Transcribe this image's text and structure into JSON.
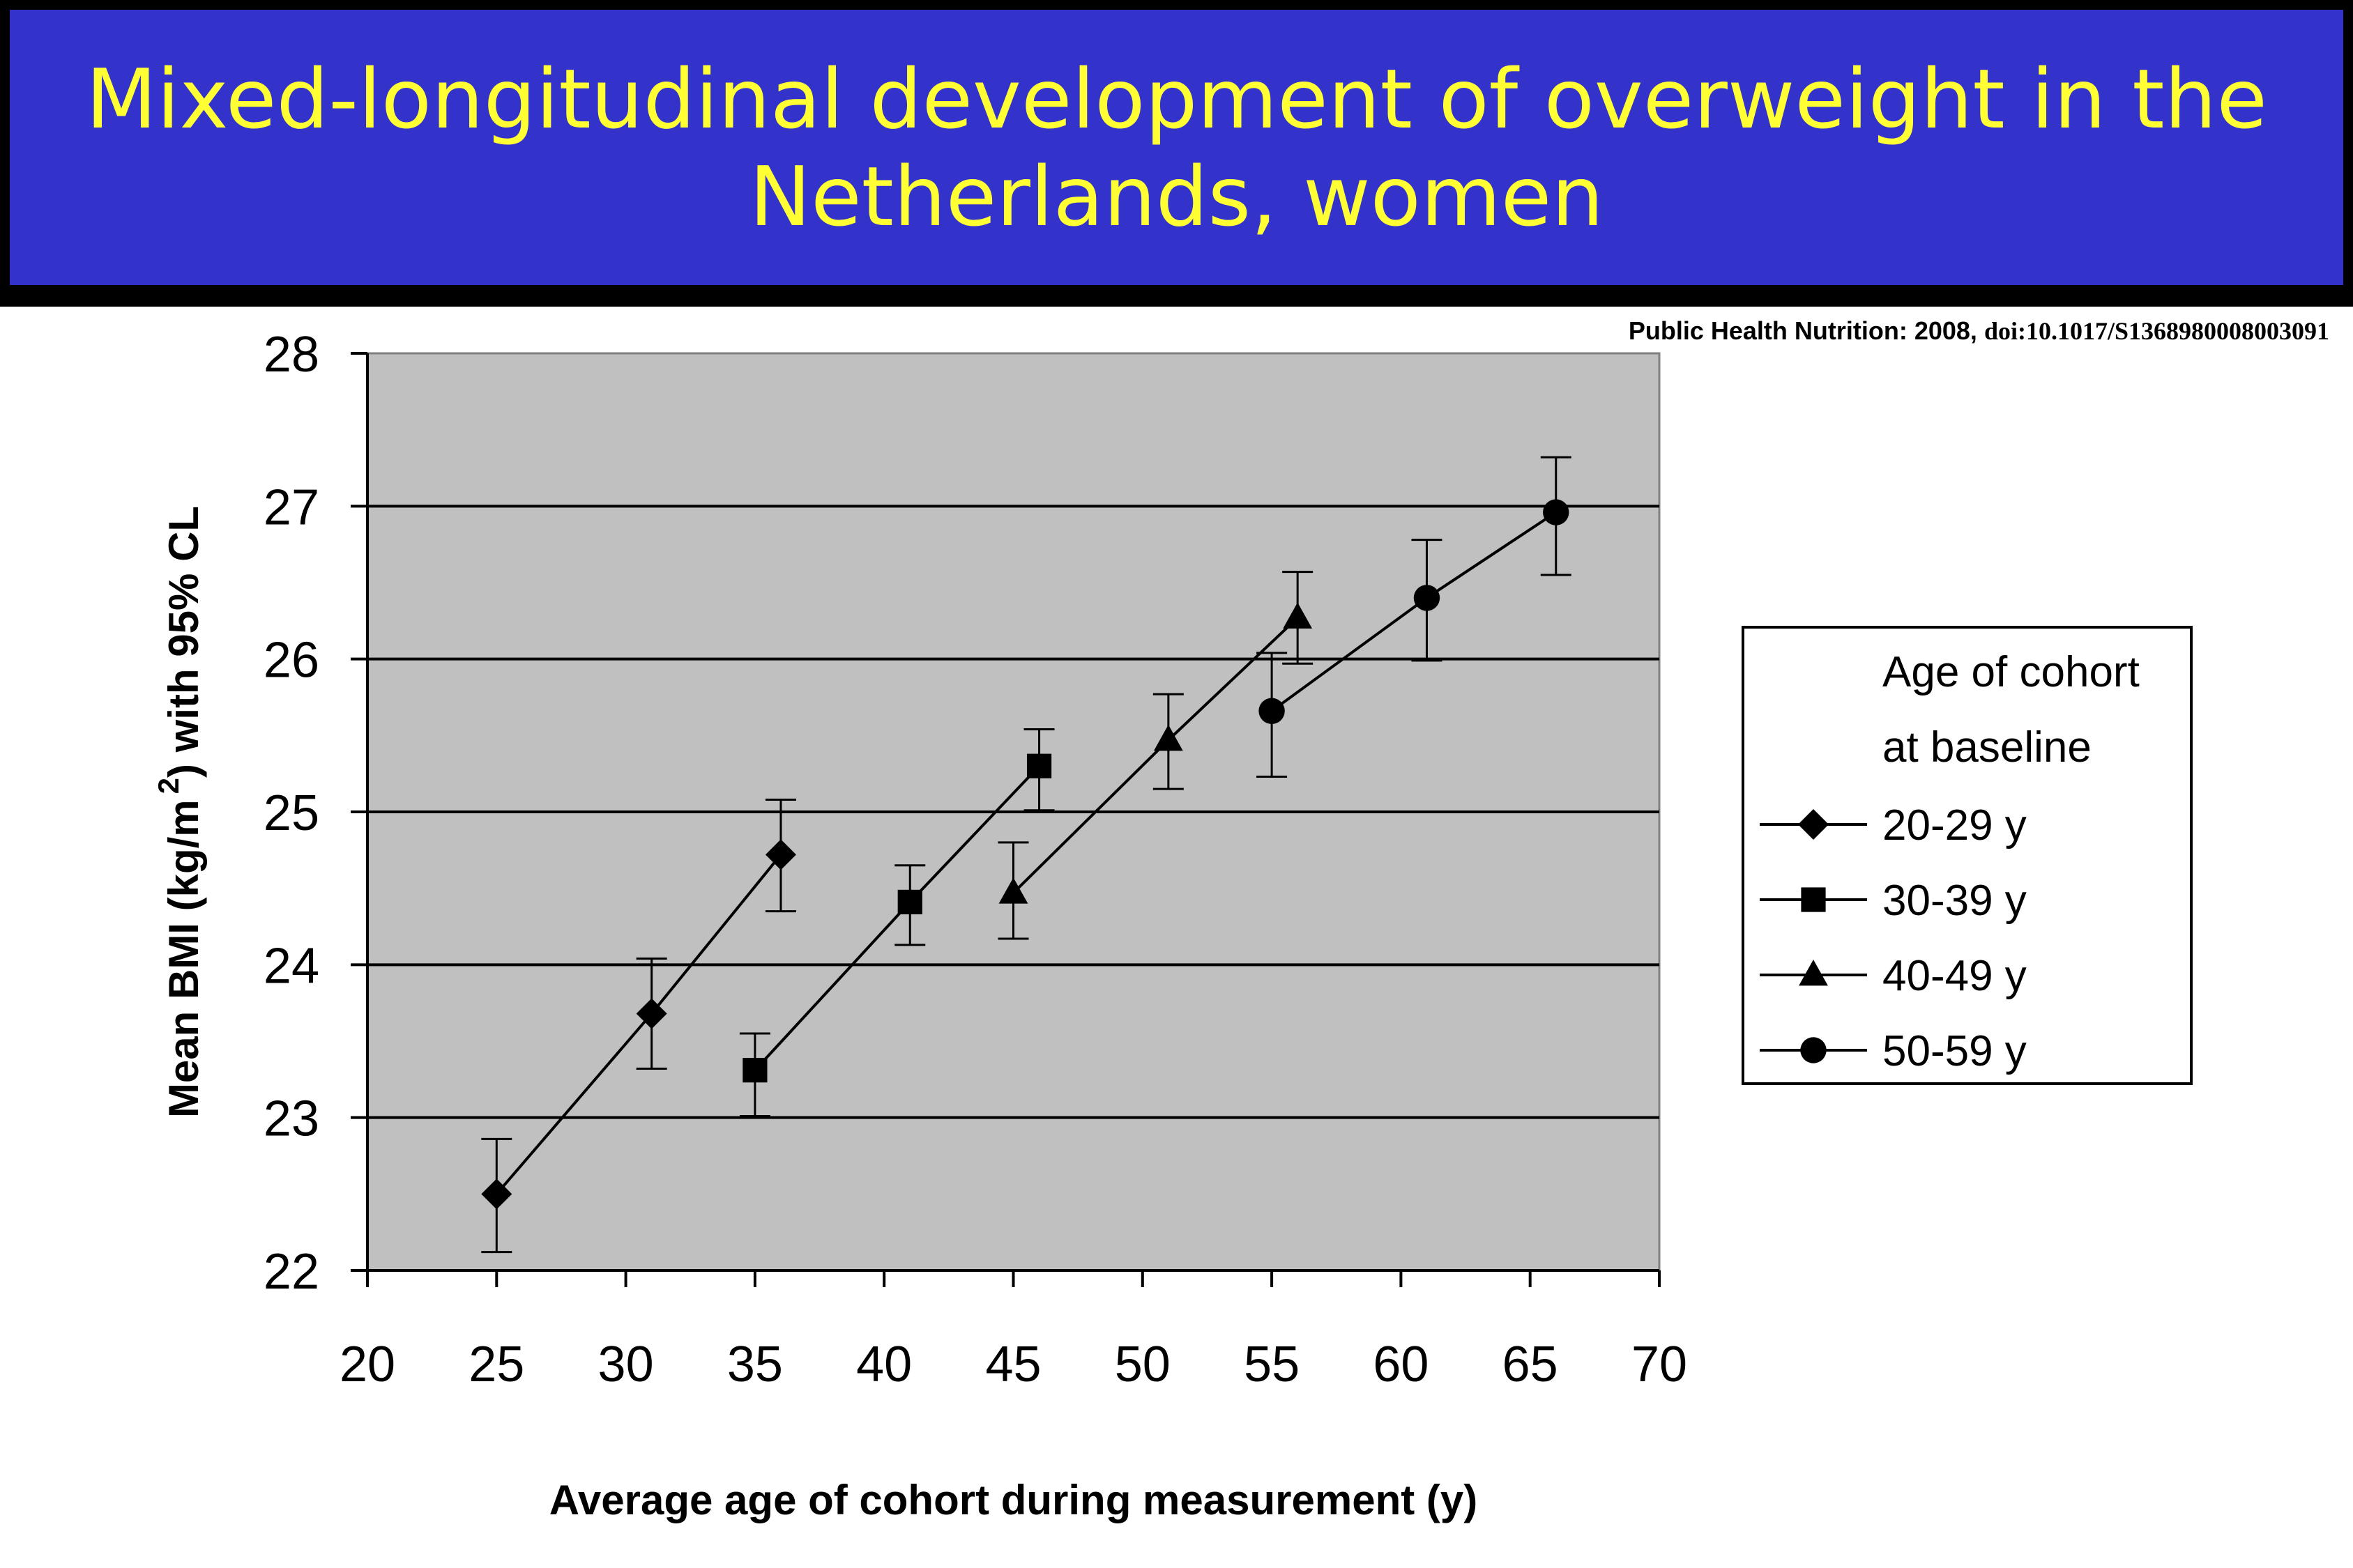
{
  "title_line1": "Mixed-longitudinal development of overweight in the",
  "title_line2": "Netherlands, women",
  "citation_journal": "Public Health Nutrition: 2008,",
  "citation_doi": "doi:10.1017/S1368980008003091",
  "colors": {
    "title_bg": "#3333cc",
    "title_text": "#ffff33",
    "plot_bg": "#c0c0c0",
    "series": "#000000"
  },
  "chart_data": {
    "type": "line",
    "xlabel": "Average age of cohort during measurement (y)",
    "ylabel_pre": "Mean BMI (kg/m",
    "ylabel_sup": "2",
    "ylabel_post": ") with 95% CL",
    "xlim": [
      20,
      70
    ],
    "ylim": [
      22,
      28
    ],
    "x_ticks": [
      "20",
      "25",
      "30",
      "35",
      "40",
      "45",
      "50",
      "55",
      "60",
      "65",
      "70"
    ],
    "y_ticks": [
      "22",
      "23",
      "24",
      "25",
      "26",
      "27",
      "28"
    ],
    "grid": "horizontal",
    "legend_title_line1": "Age of cohort",
    "legend_title_line2": "at baseline",
    "legend_position": "right",
    "series": [
      {
        "name": "20-29 y",
        "marker": "diamond",
        "points": [
          {
            "x": 25,
            "y": 22.5,
            "lo": 22.12,
            "hi": 22.86
          },
          {
            "x": 31,
            "y": 23.68,
            "lo": 23.32,
            "hi": 24.04
          },
          {
            "x": 36,
            "y": 24.72,
            "lo": 24.35,
            "hi": 25.08
          }
        ]
      },
      {
        "name": "30-39 y",
        "marker": "square",
        "points": [
          {
            "x": 35,
            "y": 23.31,
            "lo": 23.01,
            "hi": 23.55
          },
          {
            "x": 41,
            "y": 24.41,
            "lo": 24.13,
            "hi": 24.65
          },
          {
            "x": 46,
            "y": 25.3,
            "lo": 25.01,
            "hi": 25.54
          }
        ]
      },
      {
        "name": "40-49 y",
        "marker": "triangle",
        "points": [
          {
            "x": 45,
            "y": 24.47,
            "lo": 24.17,
            "hi": 24.8
          },
          {
            "x": 51,
            "y": 25.47,
            "lo": 25.15,
            "hi": 25.77
          },
          {
            "x": 56,
            "y": 26.27,
            "lo": 25.97,
            "hi": 26.57
          }
        ]
      },
      {
        "name": "50-59 y",
        "marker": "circle",
        "points": [
          {
            "x": 55,
            "y": 25.66,
            "lo": 25.23,
            "hi": 26.04
          },
          {
            "x": 61,
            "y": 26.4,
            "lo": 25.99,
            "hi": 26.78
          },
          {
            "x": 66,
            "y": 26.96,
            "lo": 26.55,
            "hi": 27.32
          }
        ]
      }
    ]
  }
}
